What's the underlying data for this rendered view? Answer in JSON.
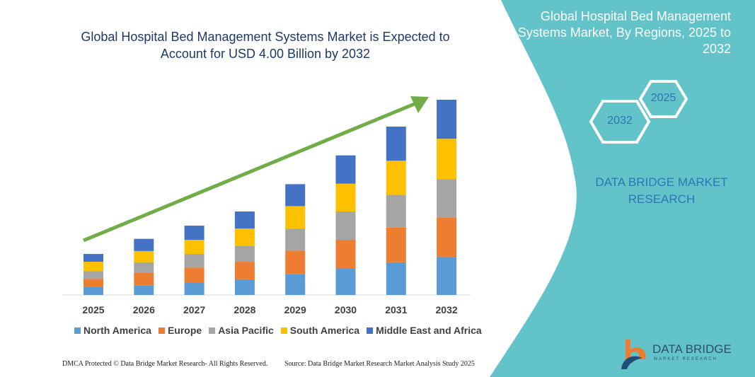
{
  "title": "Global Hospital Bed Management Systems Market is Expected to Account for USD 4.00 Billion by 2032",
  "side_panel": {
    "title": "Global Hospital Bed Management Systems Market, By Regions, 2025 to 2032",
    "hex_start": "2025",
    "hex_end": "2032",
    "brand": "DATA BRIDGE MARKET RESEARCH"
  },
  "footer": {
    "copyright": "DMCA Protected © Data Bridge Market Research- All Rights Reserved.",
    "source": "Source: Data Bridge Market Research Market Analysis Study 2025"
  },
  "logo": {
    "name": "DATA BRIDGE",
    "tagline": "MARKET RESEARCH"
  },
  "colors": {
    "panel": "#62c3c9",
    "arrow": "#70ad47"
  },
  "chart_data": {
    "type": "bar",
    "stacked": true,
    "title": "Global Hospital Bed Management Systems Market is Expected to Account for USD 4.00 Billion by 2032",
    "xlabel": "",
    "ylabel": "",
    "ylim": [
      0,
      4.2
    ],
    "grid": false,
    "legend": "bottom",
    "categories": [
      "2025",
      "2026",
      "2027",
      "2028",
      "2029",
      "2030",
      "2031",
      "2032"
    ],
    "series": [
      {
        "name": "North America",
        "color": "#5b9bd5",
        "values": [
          0.16,
          0.2,
          0.26,
          0.32,
          0.43,
          0.55,
          0.67,
          0.78
        ]
      },
      {
        "name": "Europe",
        "color": "#ed7d31",
        "values": [
          0.17,
          0.25,
          0.3,
          0.36,
          0.48,
          0.58,
          0.71,
          0.81
        ]
      },
      {
        "name": "Asia Pacific",
        "color": "#a5a5a5",
        "values": [
          0.16,
          0.22,
          0.28,
          0.33,
          0.45,
          0.58,
          0.67,
          0.78
        ]
      },
      {
        "name": "South America",
        "color": "#ffc000",
        "values": [
          0.19,
          0.23,
          0.29,
          0.35,
          0.46,
          0.57,
          0.7,
          0.83
        ]
      },
      {
        "name": "Middle East and Africa",
        "color": "#4472c4",
        "values": [
          0.16,
          0.25,
          0.29,
          0.35,
          0.45,
          0.58,
          0.7,
          0.8
        ]
      }
    ]
  }
}
